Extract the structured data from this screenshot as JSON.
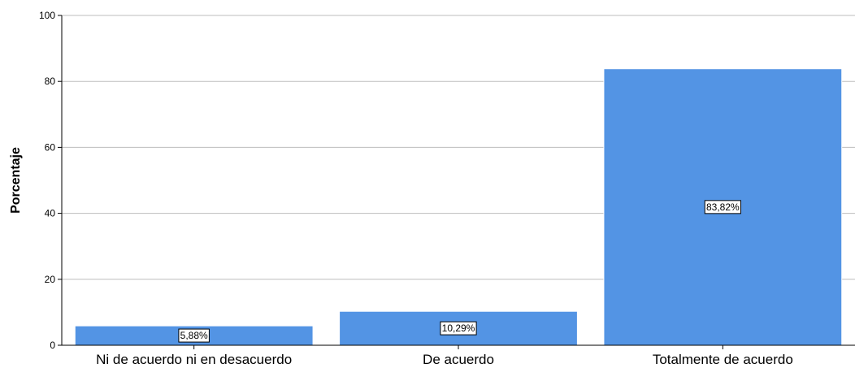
{
  "chart_data": {
    "type": "bar",
    "categories": [
      "Ni de acuerdo ni en desacuerdo",
      "De acuerdo",
      "Totalmente de acuerdo"
    ],
    "values": [
      5.88,
      10.29,
      83.82
    ],
    "data_labels": [
      "5,88%",
      "10,29%",
      "83,82%"
    ],
    "title": "",
    "xlabel": "",
    "ylabel": "Porcentaje",
    "ylim": [
      0,
      100
    ],
    "yticks": [
      0,
      20,
      40,
      60,
      80,
      100
    ],
    "grid": true,
    "legend": "none",
    "colors": {
      "bar": "#5394e4",
      "bar_edge": "#ffffff",
      "grid": "#bdbdbd",
      "axis": "#000000"
    }
  }
}
